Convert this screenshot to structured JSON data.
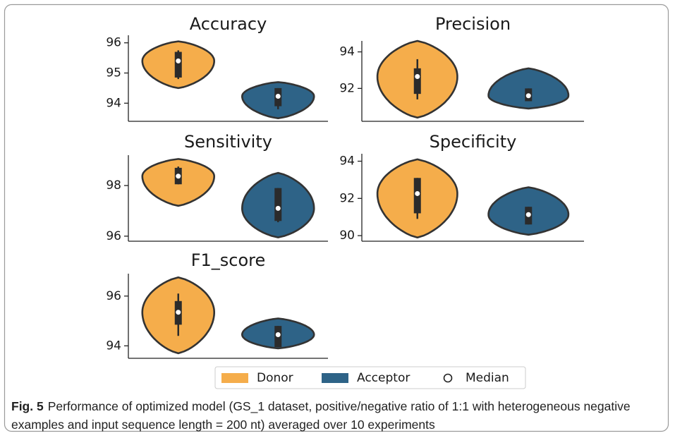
{
  "chart_data": [
    {
      "type": "violin",
      "title": "Accuracy",
      "ylim": [
        93.4,
        96.25
      ],
      "yticks": [
        94,
        95,
        96
      ],
      "violins": [
        {
          "color": "#f5ad4b",
          "low": 94.5,
          "whisker_low": 94.8,
          "q1": 94.85,
          "median": 95.4,
          "q3": 95.7,
          "whisker_high": 95.75,
          "high": 96.05
        },
        {
          "color": "#2e6387",
          "low": 93.5,
          "whisker_low": 93.8,
          "q1": 93.9,
          "median": 94.23,
          "q3": 94.5,
          "whisker_high": 94.5,
          "high": 94.7
        }
      ]
    },
    {
      "type": "violin",
      "title": "Precision",
      "ylim": [
        90.2,
        94.6
      ],
      "yticks": [
        92,
        94
      ],
      "violins": [
        {
          "color": "#f5ad4b",
          "low": 90.4,
          "whisker_low": 91.4,
          "q1": 91.7,
          "median": 92.65,
          "q3": 93.1,
          "whisker_high": 93.6,
          "high": 94.6
        },
        {
          "color": "#2e6387",
          "low": 90.9,
          "whisker_low": 91.3,
          "q1": 91.3,
          "median": 91.6,
          "q3": 92.0,
          "whisker_high": 92.0,
          "high": 93.1
        }
      ]
    },
    {
      "type": "violin",
      "title": "Sensitivity",
      "ylim": [
        95.8,
        99.2
      ],
      "yticks": [
        96,
        98
      ],
      "violins": [
        {
          "color": "#f5ad4b",
          "low": 97.2,
          "whisker_low": 98.05,
          "q1": 98.05,
          "median": 98.37,
          "q3": 98.7,
          "whisker_high": 98.75,
          "high": 99.05
        },
        {
          "color": "#2e6387",
          "low": 95.95,
          "whisker_low": 96.55,
          "q1": 96.6,
          "median": 97.1,
          "q3": 97.9,
          "whisker_high": 97.9,
          "high": 98.5
        }
      ]
    },
    {
      "type": "violin",
      "title": "Specificity",
      "ylim": [
        89.7,
        94.4
      ],
      "yticks": [
        90,
        92,
        94
      ],
      "violins": [
        {
          "color": "#f5ad4b",
          "low": 89.9,
          "whisker_low": 90.9,
          "q1": 91.2,
          "median": 92.26,
          "q3": 93.1,
          "whisker_high": 93.1,
          "high": 94.1
        },
        {
          "color": "#2e6387",
          "low": 90.05,
          "whisker_low": 90.6,
          "q1": 90.6,
          "median": 91.13,
          "q3": 91.55,
          "whisker_high": 91.55,
          "high": 92.6
        }
      ]
    },
    {
      "type": "violin",
      "title": "F1_score",
      "ylim": [
        93.5,
        96.9
      ],
      "yticks": [
        94,
        96
      ],
      "violins": [
        {
          "color": "#f5ad4b",
          "low": 93.7,
          "whisker_low": 94.4,
          "q1": 94.85,
          "median": 95.35,
          "q3": 95.8,
          "whisker_high": 96.1,
          "high": 96.75
        },
        {
          "color": "#2e6387",
          "low": 93.9,
          "whisker_low": 93.95,
          "q1": 93.95,
          "median": 94.45,
          "q3": 94.8,
          "whisker_high": 94.8,
          "high": 95.1
        }
      ]
    }
  ],
  "legend": [
    {
      "name": "Donor",
      "color": "#f5ad4b"
    },
    {
      "name": "Acceptor",
      "color": "#2e6387"
    },
    {
      "name": "Median"
    }
  ],
  "caption": {
    "label": "Fig. 5",
    "text": "Performance of optimized model (GS_1 dataset, positive/negative ratio of 1:1 with heterogeneous negative examples and input sequence length = 200 nt) averaged over 10 experiments"
  }
}
